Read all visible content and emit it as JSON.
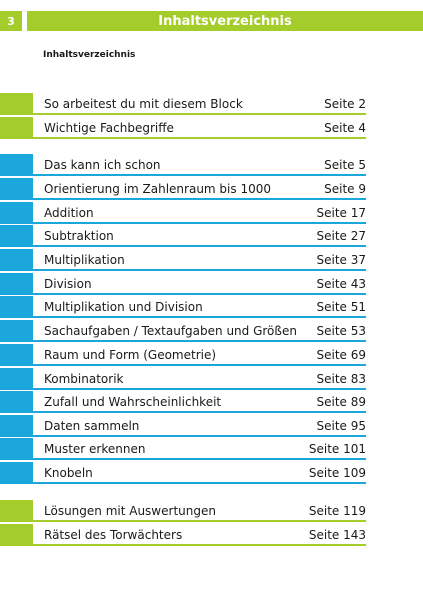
{
  "header": {
    "page_number": "3",
    "title": "Inhaltsverzeichnis"
  },
  "toc_heading": "Inhaltsverzeichnis",
  "colors": {
    "green": "#a4cc2a",
    "blue": "#1ba7dc"
  },
  "toc": [
    {
      "label": "So arbeitest du mit diesem Block",
      "page": "Seite 2",
      "color": "green"
    },
    {
      "label": "Wichtige Fachbegriffe",
      "page": "Seite 4",
      "color": "green"
    },
    {
      "label": "Das kann ich schon",
      "page": "Seite 5",
      "color": "blue"
    },
    {
      "label": "Orientierung im Zahlenraum bis 1000",
      "page": "Seite 9",
      "color": "blue"
    },
    {
      "label": "Addition",
      "page": "Seite 17",
      "color": "blue"
    },
    {
      "label": "Subtraktion",
      "page": "Seite 27",
      "color": "blue"
    },
    {
      "label": "Multiplikation",
      "page": "Seite 37",
      "color": "blue"
    },
    {
      "label": "Division",
      "page": "Seite 43",
      "color": "blue"
    },
    {
      "label": "Multiplikation und Division",
      "page": "Seite 51",
      "color": "blue"
    },
    {
      "label": "Sachaufgaben / Textaufgaben und Größen",
      "page": "Seite 53",
      "color": "blue"
    },
    {
      "label": "Raum und Form (Geometrie)",
      "page": "Seite 69",
      "color": "blue"
    },
    {
      "label": "Kombinatorik",
      "page": "Seite 83",
      "color": "blue"
    },
    {
      "label": "Zufall und Wahrscheinlichkeit",
      "page": "Seite 89",
      "color": "blue"
    },
    {
      "label": "Daten sammeln",
      "page": "Seite 95",
      "color": "blue"
    },
    {
      "label": "Muster erkennen",
      "page": "Seite 101",
      "color": "blue"
    },
    {
      "label": "Knobeln",
      "page": "Seite 109",
      "color": "blue"
    },
    {
      "label": "Lösungen mit Auswertungen",
      "page": "Seite 119",
      "color": "green"
    },
    {
      "label": "Rätsel des Torwächters",
      "page": "Seite 143",
      "color": "green"
    }
  ]
}
